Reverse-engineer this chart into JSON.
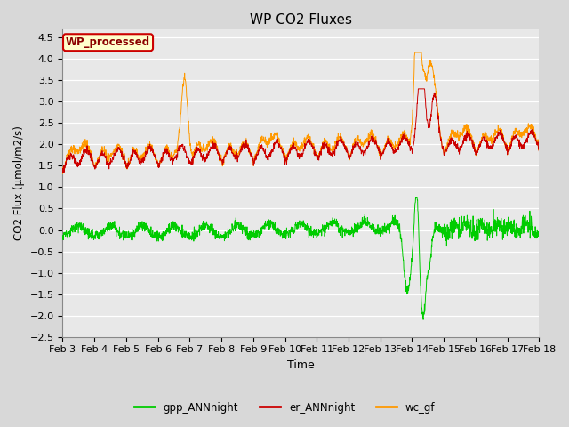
{
  "title": "WP CO2 Fluxes",
  "xlabel": "Time",
  "ylabel": "CO2 Flux (μmol/m2/s)",
  "ylim": [
    -2.5,
    4.7
  ],
  "xlim_days": [
    3,
    18
  ],
  "x_tick_labels": [
    "Feb 3",
    "Feb 4",
    "Feb 5",
    "Feb 6",
    "Feb 7",
    "Feb 8",
    "Feb 9",
    "Feb 10",
    "Feb 11",
    "Feb 12",
    "Feb 13",
    "Feb 14",
    "Feb 15",
    "Feb 16",
    "Feb 17",
    "Feb 18"
  ],
  "x_tick_positions": [
    3,
    4,
    5,
    6,
    7,
    8,
    9,
    10,
    11,
    12,
    13,
    14,
    15,
    16,
    17,
    18
  ],
  "legend_entries": [
    "gpp_ANNnight",
    "er_ANNnight",
    "wc_gf"
  ],
  "legend_colors": [
    "#00cc00",
    "#cc0000",
    "#ff9900"
  ],
  "box_label": "WP_processed",
  "box_text_color": "#8B0000",
  "box_bg_color": "#ffffcc",
  "box_edge_color": "#cc0000",
  "color_gpp": "#00cc00",
  "color_er": "#cc0000",
  "color_wc": "#ff9900",
  "fig_bg_color": "#d8d8d8",
  "plot_bg_color": "#e8e8e8",
  "grid_color": "#ffffff",
  "linewidth": 0.7,
  "n_points": 2000,
  "title_fontsize": 11
}
